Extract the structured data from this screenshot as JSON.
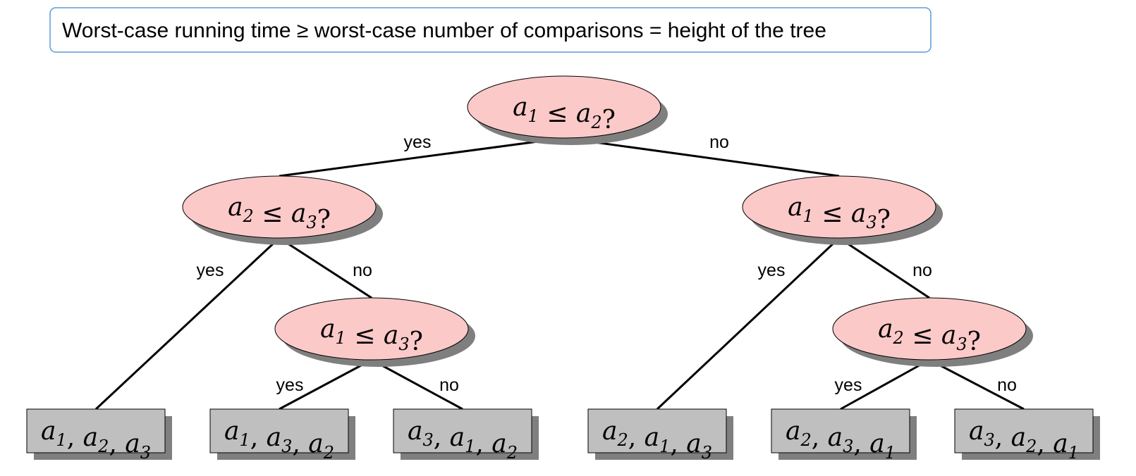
{
  "caption": "Worst-case running time ≥ worst-case number of comparisons = height of the tree",
  "colors": {
    "node_fill": "#fcc9c9",
    "leaf_fill": "#bfbfbf",
    "shadow": "#7f7f7f",
    "caption_border": "#5b9bd5"
  },
  "tree": {
    "root": {
      "i": 1,
      "j": 2
    },
    "left": {
      "i": 2,
      "j": 3
    },
    "right": {
      "i": 1,
      "j": 3
    },
    "left_inner": {
      "i": 1,
      "j": 3
    },
    "right_inner": {
      "i": 2,
      "j": 3
    }
  },
  "edge_labels": {
    "yes": "yes",
    "no": "no"
  },
  "leaves": [
    [
      1,
      2,
      3
    ],
    [
      1,
      3,
      2
    ],
    [
      3,
      1,
      2
    ],
    [
      2,
      1,
      3
    ],
    [
      2,
      3,
      1
    ],
    [
      3,
      2,
      1
    ]
  ]
}
